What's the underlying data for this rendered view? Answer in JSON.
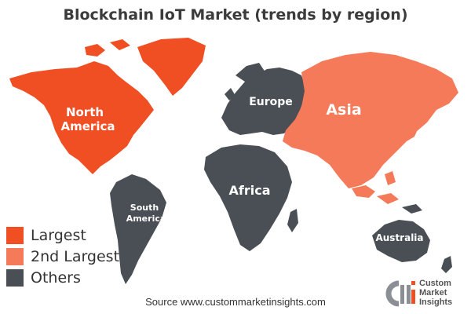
{
  "title": "Blockchain IoT Market (trends by region)",
  "colors": {
    "largest": "#f04e23",
    "second": "#f47a5a",
    "others": "#4a4f55"
  },
  "regions": {
    "north_america": {
      "label_line1": "North",
      "label_line2": "America",
      "category": "Largest"
    },
    "europe": {
      "label": "Europe",
      "category": "Others"
    },
    "asia": {
      "label": "Asia",
      "category": "2nd Largest"
    },
    "africa": {
      "label": "Africa",
      "category": "Others"
    },
    "south_america": {
      "label_line1": "South",
      "label_line2": "America",
      "category": "Others"
    },
    "australia": {
      "label": "Australia",
      "category": "Others"
    }
  },
  "legend": [
    {
      "label": "Largest",
      "color": "#f04e23"
    },
    {
      "label": "2nd Largest",
      "color": "#f47a5a"
    },
    {
      "label": "Others",
      "color": "#4a4f55"
    }
  ],
  "source": "Source www.custommarketinsights.com",
  "logo": {
    "line1": "Custom",
    "line2": "Market",
    "line3": "Insights",
    "mark": "CMI"
  }
}
